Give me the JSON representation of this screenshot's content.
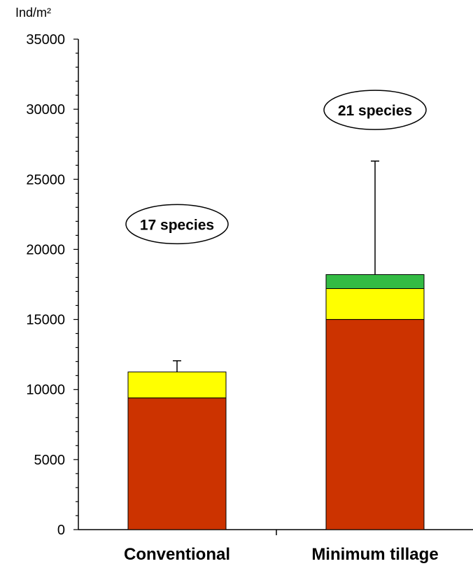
{
  "chart_data": {
    "type": "bar",
    "stacked": true,
    "ylabel": "Ind/m²",
    "ylim": [
      0,
      35000
    ],
    "yticks": [
      0,
      5000,
      10000,
      15000,
      20000,
      25000,
      30000,
      35000
    ],
    "categories": [
      "Conventional",
      "Minimum tillage"
    ],
    "series": [
      {
        "color": "#cc3300",
        "values": [
          9400,
          15000
        ]
      },
      {
        "color": "#ffff00",
        "values": [
          1850,
          2200
        ]
      },
      {
        "color": "#33bb44",
        "values": [
          0,
          1000
        ]
      }
    ],
    "error_bars": [
      12050,
      26300
    ],
    "annotations": [
      "17 species",
      "21 species"
    ],
    "annotation_y": [
      21800,
      29950
    ],
    "grid": false
  }
}
